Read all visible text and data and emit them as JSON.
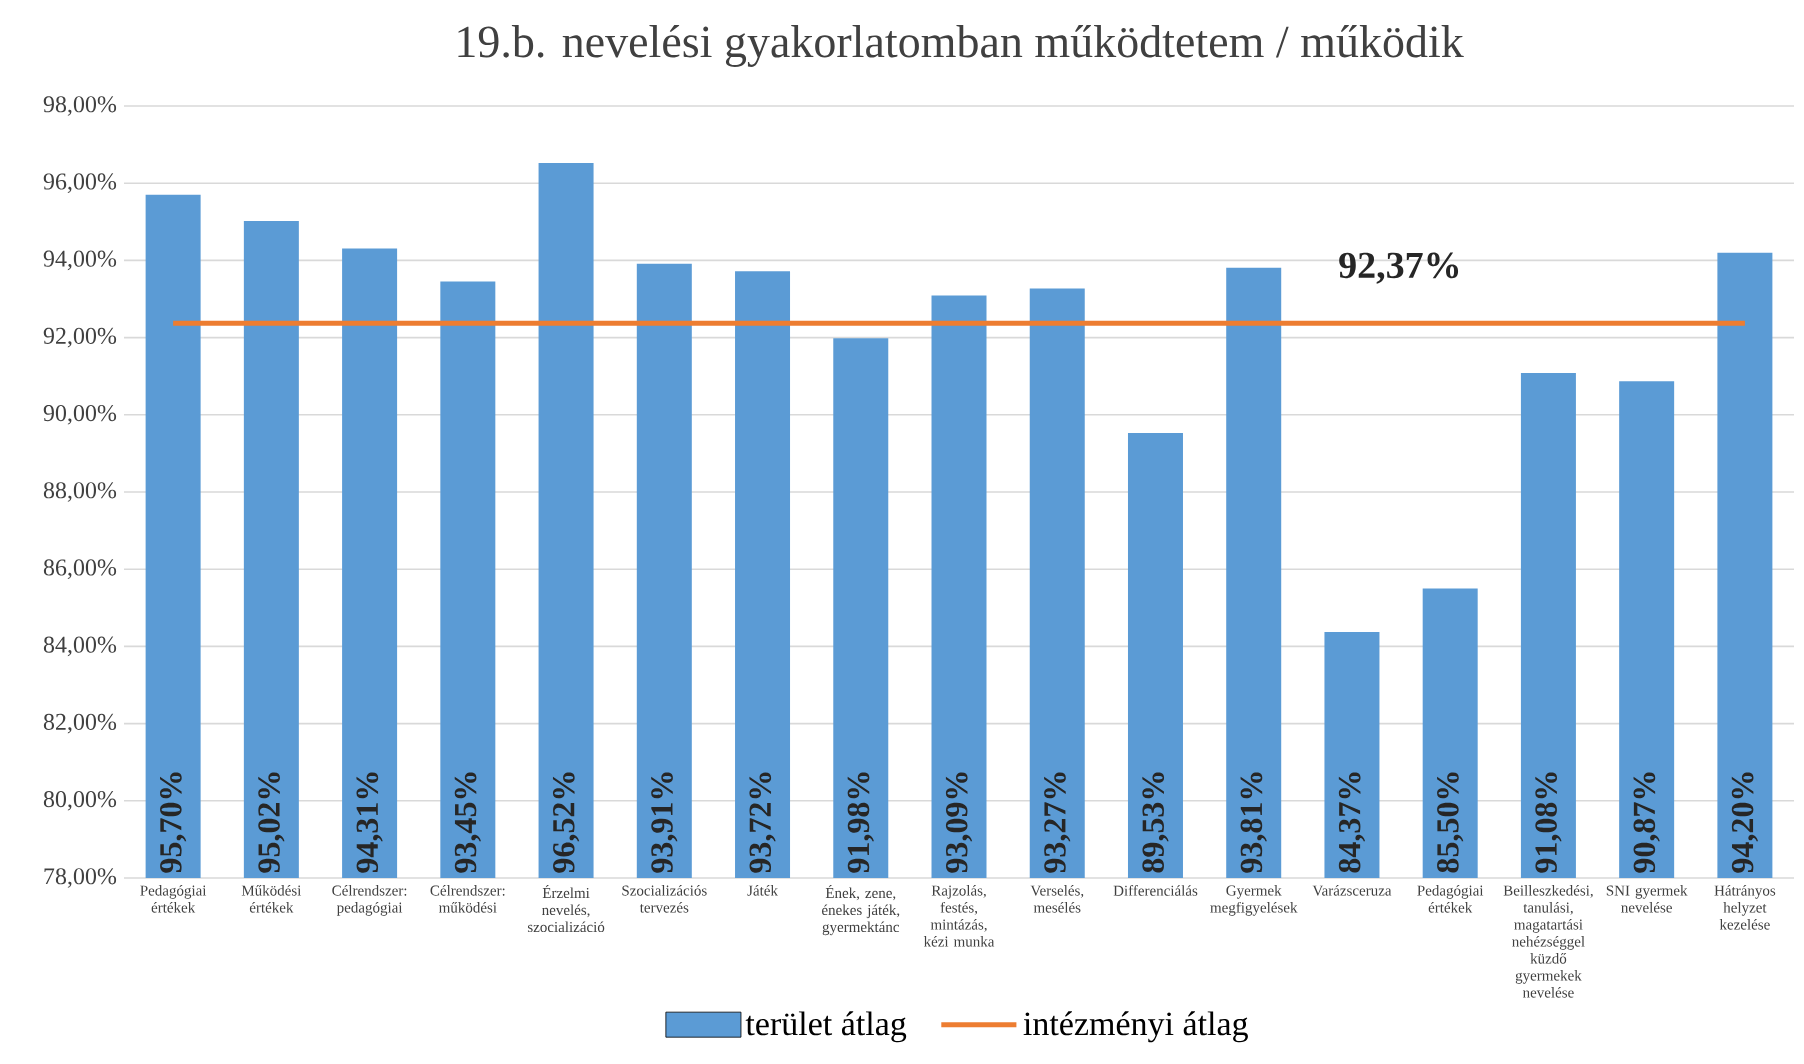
{
  "chart_data": {
    "type": "bar",
    "title": "19.b. nevelési gyakorlatomban működtetem / működik",
    "categories": [
      "Pedagógiai értékek",
      "Működési értékek",
      "Célrendszer: pedagógiai",
      "Célrendszer: működési",
      "Érzelmi nevelés, szocializáció",
      "Szocializációs tervezés",
      "Játék",
      "Ének, zene, énekes játék, gyermektánc",
      "Rajzolás, festés, mintázás, kézi munka",
      "Verselés, mesélés",
      "Differenciálás",
      "Gyermek megfigyelések",
      "Varázsceruza",
      "Pedagógiai értékek",
      "Beilleszkedési, tanulási, magatartási nehézséggel küzdő gyermekek nevelése",
      "SNI gyermek nevelése",
      "Hátrányos helyzet kezelése"
    ],
    "series": [
      {
        "name": "terület átlag",
        "color": "#5b9bd5",
        "values": [
          95.7,
          95.02,
          94.31,
          93.45,
          96.52,
          93.91,
          93.72,
          91.98,
          93.09,
          93.27,
          89.53,
          93.81,
          84.37,
          85.5,
          91.08,
          90.87,
          94.2
        ],
        "value_labels": [
          "95,70%",
          "95,02%",
          "94,31%",
          "93,45%",
          "96,52%",
          "93,91%",
          "93,72%",
          "91,98%",
          "93,09%",
          "93,27%",
          "89,53%",
          "93,81%",
          "84,37%",
          "85,50%",
          "91,08%",
          "90,87%",
          "94,20%"
        ]
      },
      {
        "name": "intézményi átlag",
        "type": "line",
        "color": "#ed7d31",
        "values": [
          92.37,
          92.37,
          92.37,
          92.37,
          92.37,
          92.37,
          92.37,
          92.37,
          92.37,
          92.37,
          92.37,
          92.37,
          92.37,
          92.37,
          92.37,
          92.37,
          92.37
        ]
      }
    ],
    "ylim": [
      78,
      98
    ],
    "yticks": [
      {
        "value": 78,
        "label": "78,00%"
      },
      {
        "value": 80,
        "label": "80,00%"
      },
      {
        "value": 82,
        "label": "82,00%"
      },
      {
        "value": 84,
        "label": "84,00%"
      },
      {
        "value": 86,
        "label": "86,00%"
      },
      {
        "value": 88,
        "label": "88,00%"
      },
      {
        "value": 90,
        "label": "90,00%"
      },
      {
        "value": 92,
        "label": "92,00%"
      },
      {
        "value": 94,
        "label": "94,00%"
      },
      {
        "value": 96,
        "label": "96,00%"
      },
      {
        "value": 98,
        "label": "98,00%"
      }
    ],
    "grid": "y",
    "legend": "bottom",
    "annotations": [
      "92,37%"
    ]
  }
}
